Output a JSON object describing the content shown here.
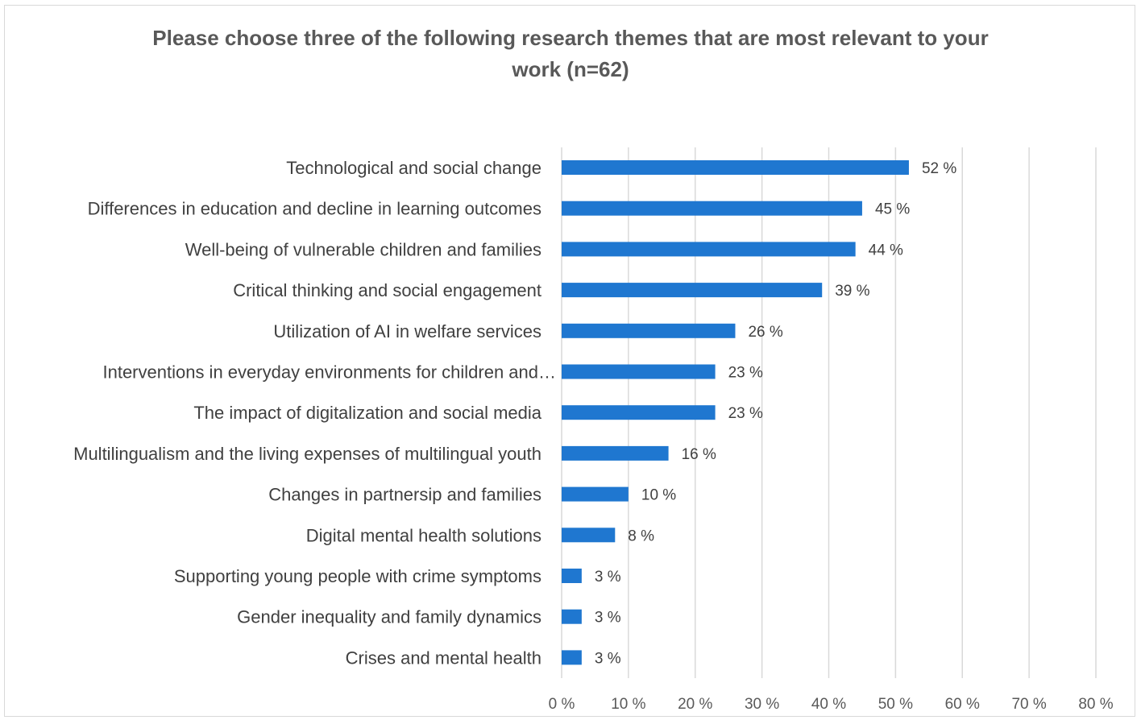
{
  "chart_data": {
    "type": "bar",
    "orientation": "horizontal",
    "title_lines": [
      "Please choose three of the following research themes that are most relevant to your",
      "work (n=62)"
    ],
    "categories": [
      "Technological and social change",
      "Differences in education and decline in learning outcomes",
      "Well-being of vulnerable children and families",
      "Critical thinking and social engagement",
      "Utilization of AI in welfare services",
      "Interventions in everyday environments for children and…",
      "The impact of digitalization and social media",
      "Multilingualism and the living expenses of multilingual youth",
      "Changes in partnersip and families",
      "Digital mental health solutions",
      "Supporting young people with crime symptoms",
      "Gender inequality and family dynamics",
      "Crises and mental health"
    ],
    "values": [
      52,
      45,
      44,
      39,
      26,
      23,
      23,
      16,
      10,
      8,
      3,
      3,
      3
    ],
    "data_labels": [
      "52 %",
      "45 %",
      "44 %",
      "39 %",
      "26 %",
      "23 %",
      "23 %",
      "16 %",
      "10 %",
      "8 %",
      "3 %",
      "3 %",
      "3 %"
    ],
    "x_ticks": [
      0,
      10,
      20,
      30,
      40,
      50,
      60,
      70,
      80
    ],
    "x_tick_labels": [
      "0 %",
      "10 %",
      "20 %",
      "30 %",
      "40 %",
      "50 %",
      "60 %",
      "70 %",
      "80 %"
    ],
    "xlim": [
      0,
      80
    ],
    "grid": "vertical",
    "legend": "none",
    "colors": {
      "bar": "#1f77d0",
      "grid": "#d9d9d9",
      "title": "#595959",
      "text": "#404040"
    }
  }
}
